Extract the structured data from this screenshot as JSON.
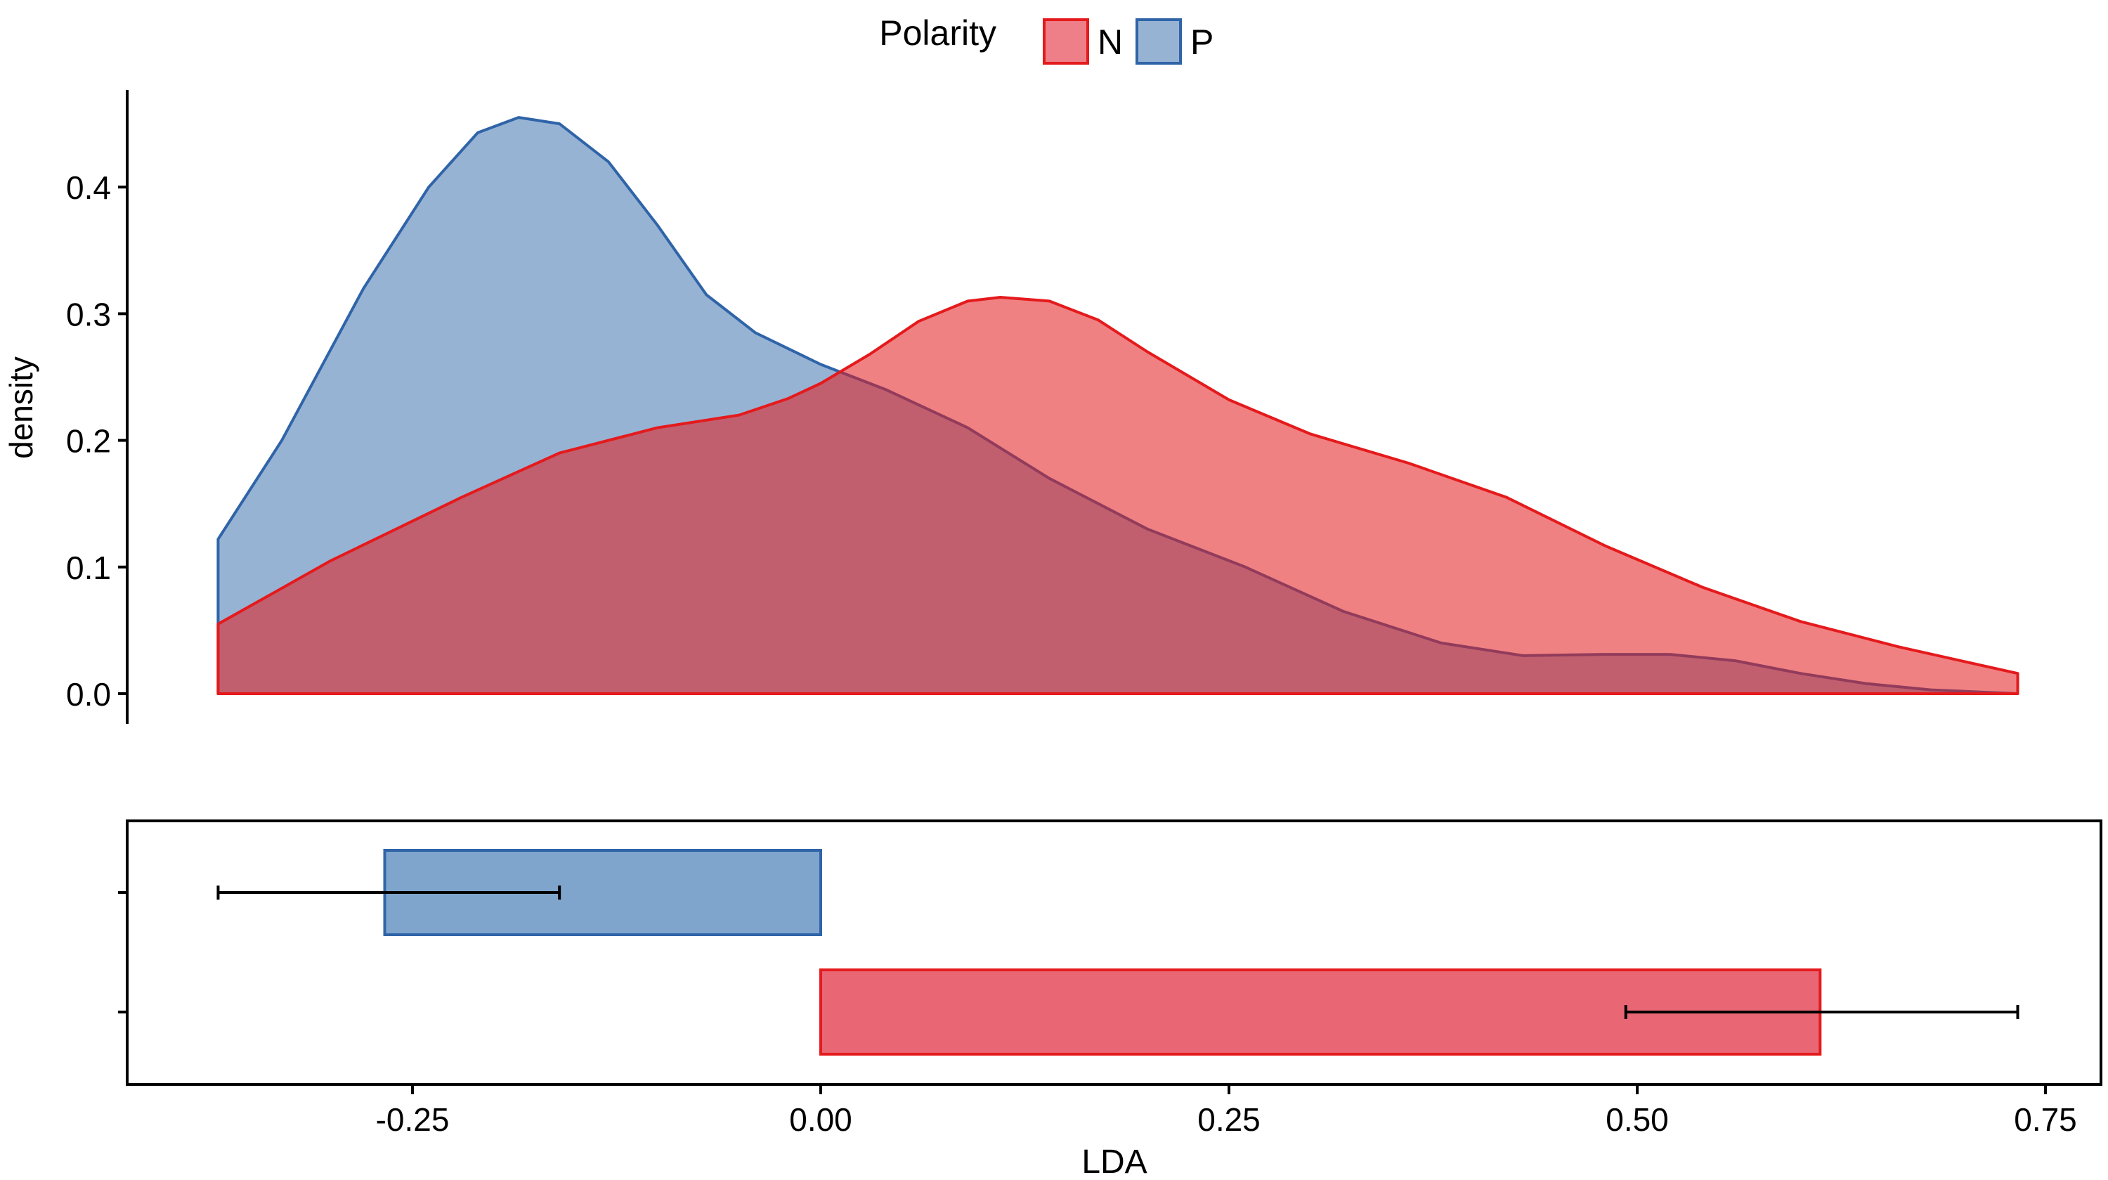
{
  "legend": {
    "title": "Polarity",
    "placement": "top-center",
    "items": [
      {
        "label": "N",
        "fill": "#EE7F89",
        "stroke": "#E41A1C"
      },
      {
        "label": "P",
        "fill": "#97B3D4",
        "stroke": "#2F64A8"
      }
    ]
  },
  "chart_data": [
    {
      "type": "area",
      "subtype": "density",
      "title": "",
      "xlabel": "",
      "ylabel": "density",
      "xlim": [
        -0.4,
        0.75
      ],
      "ylim": [
        0,
        0.47
      ],
      "yticks": [
        0.0,
        0.1,
        0.2,
        0.3,
        0.4
      ],
      "ytick_labels": [
        "0.0",
        "0.1",
        "0.2",
        "0.3",
        "0.4"
      ],
      "grid": false,
      "series": [
        {
          "name": "P",
          "fill": "#97B3D4",
          "fill_opacity": 1,
          "stroke": "#2F64A8",
          "x": [
            -0.369,
            -0.33,
            -0.28,
            -0.24,
            -0.21,
            -0.185,
            -0.16,
            -0.13,
            -0.1,
            -0.07,
            -0.04,
            0.0,
            0.04,
            0.09,
            0.14,
            0.2,
            0.26,
            0.32,
            0.38,
            0.43,
            0.48,
            0.52,
            0.56,
            0.6,
            0.64,
            0.68,
            0.733
          ],
          "y": [
            0.122,
            0.2,
            0.32,
            0.4,
            0.443,
            0.455,
            0.45,
            0.42,
            0.37,
            0.315,
            0.285,
            0.26,
            0.24,
            0.21,
            0.17,
            0.13,
            0.1,
            0.065,
            0.04,
            0.03,
            0.031,
            0.031,
            0.026,
            0.016,
            0.008,
            0.003,
            0.0
          ]
        },
        {
          "name": "N",
          "fill": "#E41A1C",
          "fill_opacity": 0.55,
          "stroke": "#E41A1C",
          "x": [
            -0.369,
            -0.3,
            -0.22,
            -0.16,
            -0.1,
            -0.05,
            -0.02,
            0.0,
            0.03,
            0.06,
            0.09,
            0.11,
            0.14,
            0.17,
            0.2,
            0.25,
            0.3,
            0.36,
            0.42,
            0.48,
            0.54,
            0.6,
            0.66,
            0.733
          ],
          "y": [
            0.055,
            0.105,
            0.155,
            0.19,
            0.21,
            0.22,
            0.233,
            0.245,
            0.268,
            0.294,
            0.31,
            0.313,
            0.31,
            0.295,
            0.27,
            0.232,
            0.205,
            0.182,
            0.155,
            0.117,
            0.084,
            0.057,
            0.037,
            0.016
          ]
        }
      ]
    },
    {
      "type": "bar",
      "orientation": "horizontal",
      "xlabel": "LDA",
      "ylabel": "",
      "xlim": [
        -0.4,
        0.75
      ],
      "xticks": [
        -0.25,
        0.0,
        0.25,
        0.5,
        0.75
      ],
      "xtick_labels": [
        "-0.25",
        "0.00",
        "0.25",
        "0.50",
        "0.75"
      ],
      "categories": [
        "P",
        "N"
      ],
      "series": [
        {
          "name": "P",
          "start": -0.267,
          "end": 0.0,
          "fill": "#7FA5CD",
          "stroke": "#2F64A8",
          "error_low": -0.369,
          "error_high": -0.16
        },
        {
          "name": "N",
          "start": 0.0,
          "end": 0.612,
          "fill": "#E96674",
          "stroke": "#E41A1C",
          "error_low": 0.493,
          "error_high": 0.733
        }
      ]
    }
  ]
}
